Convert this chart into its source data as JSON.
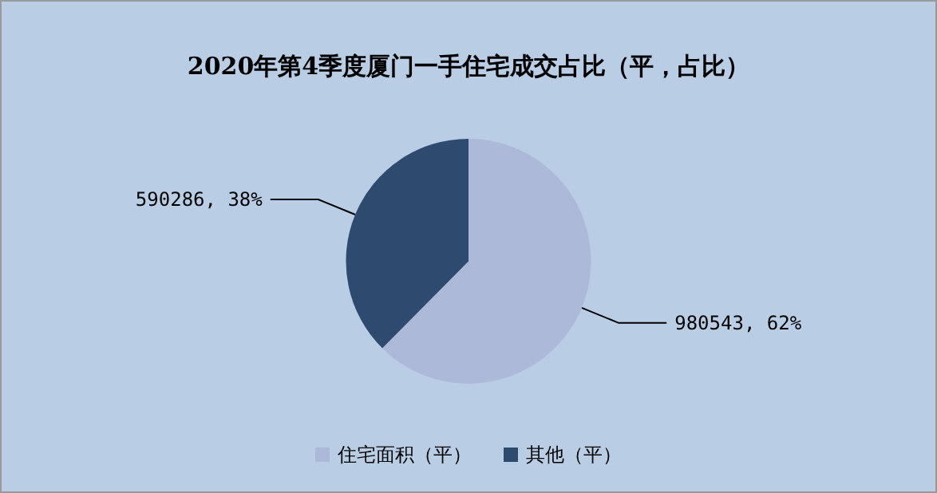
{
  "chart_data": {
    "type": "pie",
    "title": "2020年第4季度厦门一手住宅成交占比（平，占比）",
    "categories": [
      "住宅面积（平）",
      "其他（平）"
    ],
    "values": [
      980543,
      590286
    ],
    "colors": [
      "#adb9d9",
      "#2e4a6f"
    ],
    "value_labels": [
      "980543, 62%",
      "590286, 38%"
    ],
    "legend": "bottom"
  }
}
